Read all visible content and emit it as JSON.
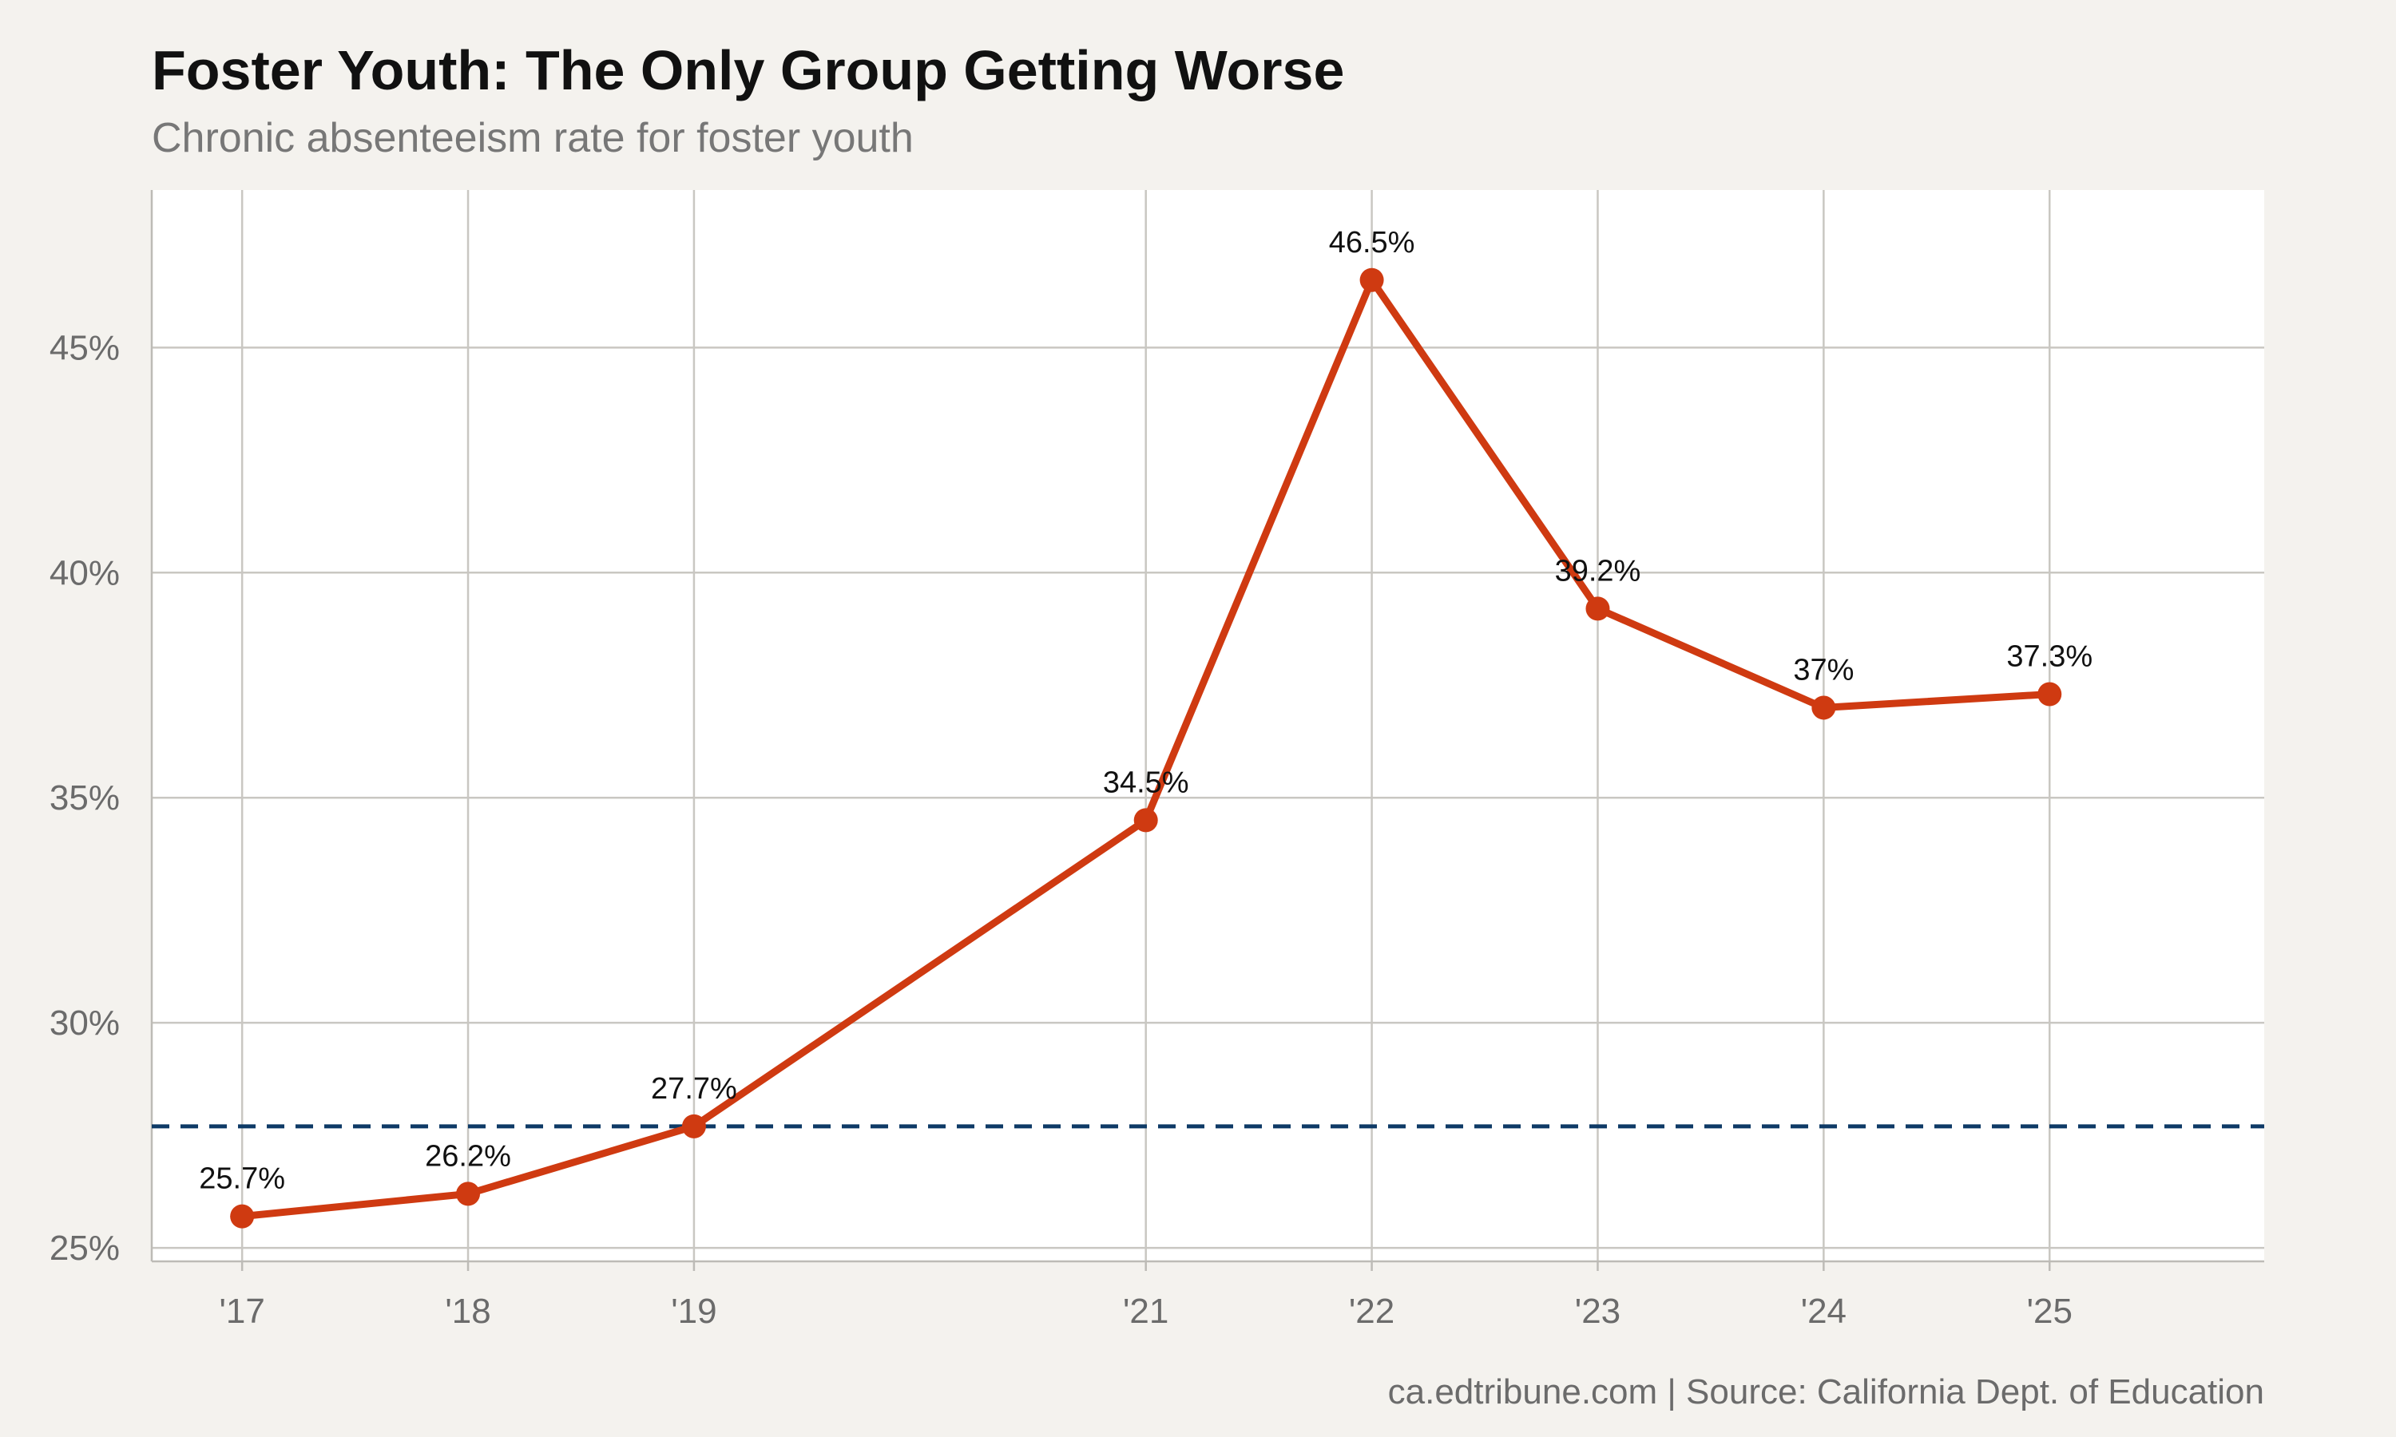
{
  "header": {
    "title": "Foster Youth: The Only Group Getting Worse",
    "subtitle": "Chronic absenteeism rate for foster youth"
  },
  "caption": "ca.edtribune.com | Source: California Dept. of Education",
  "colors": {
    "background": "#f4f2ee",
    "panel": "#ffffff",
    "series": "#cf3a11",
    "reference_line": "#0e3a66",
    "grid": "#c9c7c2"
  },
  "chart_data": {
    "type": "line",
    "title": "Foster Youth: The Only Group Getting Worse",
    "subtitle": "Chronic absenteeism rate for foster youth",
    "xlabel": "",
    "ylabel": "",
    "x": [
      2017,
      2018,
      2019,
      2021,
      2022,
      2023,
      2024,
      2025
    ],
    "x_tick_labels": [
      "'17",
      "'18",
      "'19",
      "'21",
      "'22",
      "'23",
      "'24",
      "'25"
    ],
    "values": [
      25.7,
      26.2,
      27.7,
      34.5,
      46.5,
      39.2,
      37.0,
      37.3
    ],
    "data_labels": [
      "25.7%",
      "26.2%",
      "27.7%",
      "34.5%",
      "46.5%",
      "39.2%",
      "37%",
      "37.3%"
    ],
    "xlim": [
      2016.6,
      2025.95
    ],
    "ylim": [
      24.7,
      48.5
    ],
    "y_ticks": [
      25,
      30,
      35,
      40,
      45
    ],
    "y_tick_labels": [
      "25%",
      "30%",
      "35%",
      "40%",
      "45%"
    ],
    "reference_line": {
      "y": 27.7,
      "style": "dashed"
    },
    "grid": true,
    "legend": "none"
  }
}
